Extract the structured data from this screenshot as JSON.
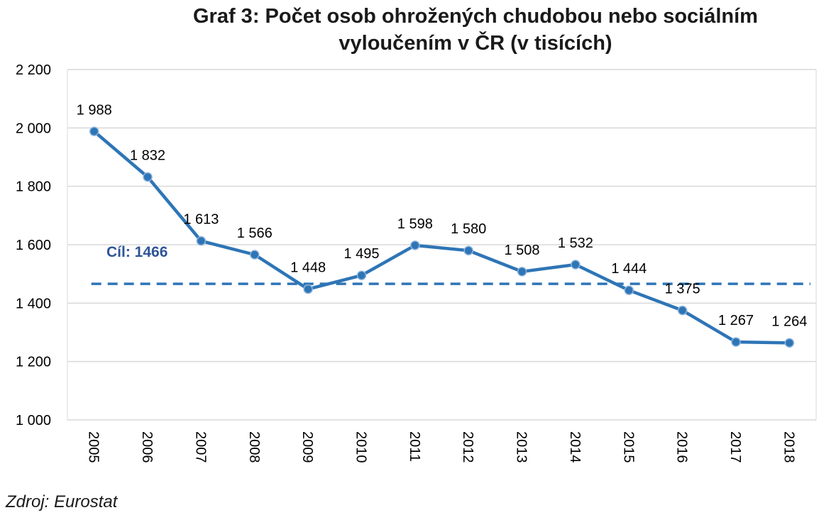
{
  "chart_data": {
    "type": "line",
    "title_lines": [
      "Graf 3: Počet osob ohrožených chudobou nebo sociálním",
      "vyloučením  v ČR (v tisících)"
    ],
    "categories": [
      "2005",
      "2006",
      "2007",
      "2008",
      "2009",
      "2010",
      "2011",
      "2012",
      "2013",
      "2014",
      "2015",
      "2016",
      "2017",
      "2018"
    ],
    "series": [
      {
        "values": [
          1988,
          1832,
          1613,
          1566,
          1448,
          1495,
          1598,
          1580,
          1508,
          1532,
          1444,
          1375,
          1267,
          1264
        ],
        "labels": [
          "1 988",
          "1 832",
          "1 613",
          "1 566",
          "1 448",
          "1 495",
          "1 598",
          "1 580",
          "1 508",
          "1 532",
          "1 444",
          "1 375",
          "1 267",
          "1 264"
        ],
        "color": "#2e75b6"
      }
    ],
    "target": {
      "value": 1466,
      "label": "Cíl: 1466",
      "style": "dashed",
      "color": "#2e75b6",
      "label_color": "#2f5597"
    },
    "yticks": [
      1000,
      1200,
      1400,
      1600,
      1800,
      2000,
      2200
    ],
    "ytick_labels": [
      "1 000",
      "1 200",
      "1 400",
      "1 600",
      "1 800",
      "2 000",
      "2 200"
    ],
    "ylim": [
      1000,
      2200
    ],
    "grid": true,
    "xlabel": "",
    "ylabel": ""
  },
  "source": "Zdroj: Eurostat"
}
